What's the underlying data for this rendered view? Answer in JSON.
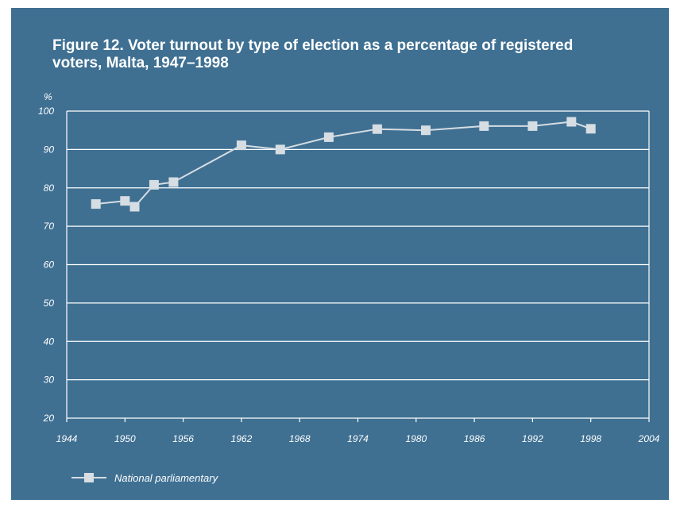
{
  "title": "Figure 12. Voter turnout by type of election as a percentage of registered voters, Malta, 1947–1998",
  "colors": {
    "background": "#3f7092",
    "foreground": "#ffffff",
    "series": "#d6dde3"
  },
  "chart_data": {
    "type": "line",
    "title": "Figure 12. Voter turnout by type of election as a percentage of registered voters, Malta, 1947–1998",
    "xlabel": "",
    "ylabel": "%",
    "xlim": [
      1944,
      2004
    ],
    "ylim": [
      20,
      100
    ],
    "x_ticks": [
      "1944",
      "1950",
      "1956",
      "1962",
      "1968",
      "1974",
      "1980",
      "1986",
      "1992",
      "1998",
      "2004"
    ],
    "y_ticks": [
      "20",
      "30",
      "40",
      "50",
      "60",
      "70",
      "80",
      "90",
      "100"
    ],
    "grid": "horizontal",
    "legend_position": "bottom-left",
    "series": [
      {
        "name": "National parliamentary",
        "marker": "square",
        "x": [
          1947,
          1950,
          1951,
          1953,
          1955,
          1962,
          1966,
          1971,
          1976,
          1981,
          1987,
          1992,
          1996,
          1998
        ],
        "values": [
          75.8,
          76.6,
          75.1,
          80.8,
          81.5,
          91.1,
          90.0,
          93.2,
          95.3,
          95.0,
          96.1,
          96.1,
          97.2,
          95.4
        ]
      }
    ]
  }
}
